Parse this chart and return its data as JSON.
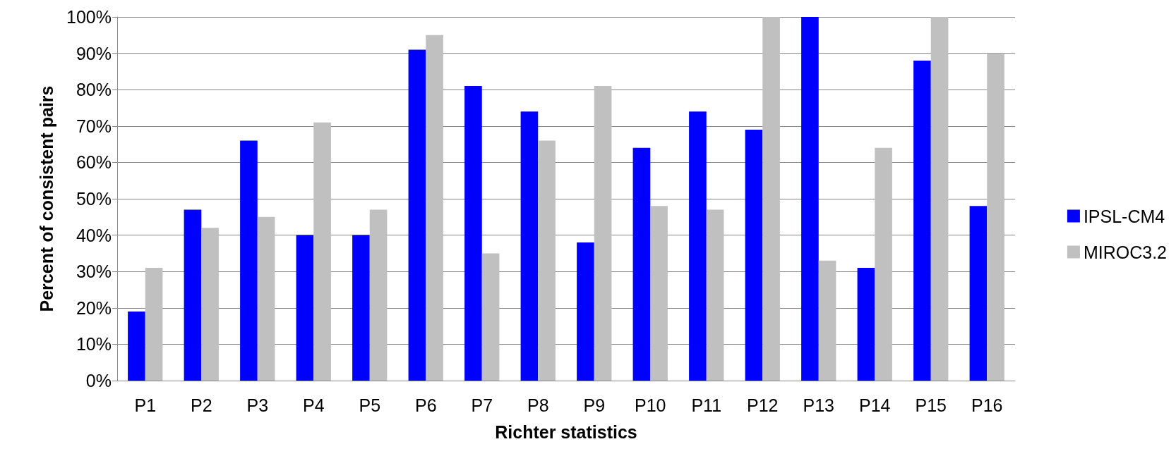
{
  "chart_data": {
    "type": "bar",
    "xlabel": "Richter statistics",
    "ylabel": "Percent of consistent pairs",
    "categories": [
      "P1",
      "P2",
      "P3",
      "P4",
      "P5",
      "P6",
      "P7",
      "P8",
      "P9",
      "P10",
      "P11",
      "P12",
      "P13",
      "P14",
      "P15",
      "P16"
    ],
    "series": [
      {
        "name": "IPSL-CM4",
        "color": "#0000ff",
        "values": [
          19,
          47,
          66,
          40,
          40,
          91,
          81,
          74,
          38,
          64,
          74,
          69,
          100,
          31,
          88,
          48
        ]
      },
      {
        "name": "MIROC3.2",
        "color": "#c0c0c0",
        "values": [
          31,
          42,
          45,
          71,
          47,
          95,
          35,
          66,
          81,
          48,
          47,
          100,
          33,
          64,
          100,
          90
        ]
      }
    ],
    "ylim": [
      0,
      100
    ],
    "yticks": [
      {
        "value": 0,
        "label": "0%"
      },
      {
        "value": 10,
        "label": "10%"
      },
      {
        "value": 20,
        "label": "20%"
      },
      {
        "value": 30,
        "label": "30%"
      },
      {
        "value": 40,
        "label": "40%"
      },
      {
        "value": 50,
        "label": "50%"
      },
      {
        "value": 60,
        "label": "60%"
      },
      {
        "value": 70,
        "label": "70%"
      },
      {
        "value": 80,
        "label": "80%"
      },
      {
        "value": 90,
        "label": "90%"
      },
      {
        "value": 100,
        "label": "100%"
      }
    ],
    "grid": "y",
    "legend": "right"
  }
}
